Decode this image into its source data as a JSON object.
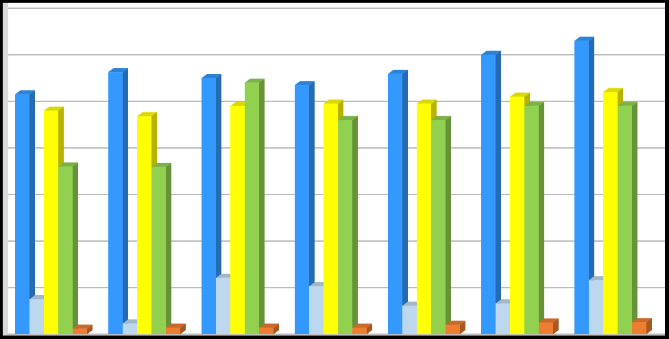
{
  "chart_data": {
    "type": "bar",
    "style": "3d-clustered-column",
    "title": "",
    "xlabel": "",
    "ylabel": "",
    "categories": [
      "",
      "",
      "",
      "",
      "",
      "",
      ""
    ],
    "ylim": [
      0,
      70
    ],
    "grid": true,
    "legend": "none",
    "series": [
      {
        "color": "#3399ff",
        "values": [
          51.5,
          56.3,
          55.0,
          53.5,
          55.9,
          60.0,
          63.0
        ]
      },
      {
        "color": "#bdd7ee",
        "values": [
          7.5,
          2.3,
          12.1,
          10.3,
          6.1,
          6.6,
          11.6
        ]
      },
      {
        "color": "#ffff00",
        "values": [
          48.0,
          46.8,
          49.0,
          49.5,
          49.5,
          51.0,
          52.0
        ]
      },
      {
        "color": "#92d050",
        "values": [
          36.0,
          35.9,
          54.0,
          46.0,
          46.0,
          49.0,
          49.0
        ]
      },
      {
        "color": "#ed7d31",
        "values": [
          1.2,
          1.4,
          1.4,
          1.4,
          2.0,
          2.5,
          2.6
        ]
      }
    ]
  }
}
